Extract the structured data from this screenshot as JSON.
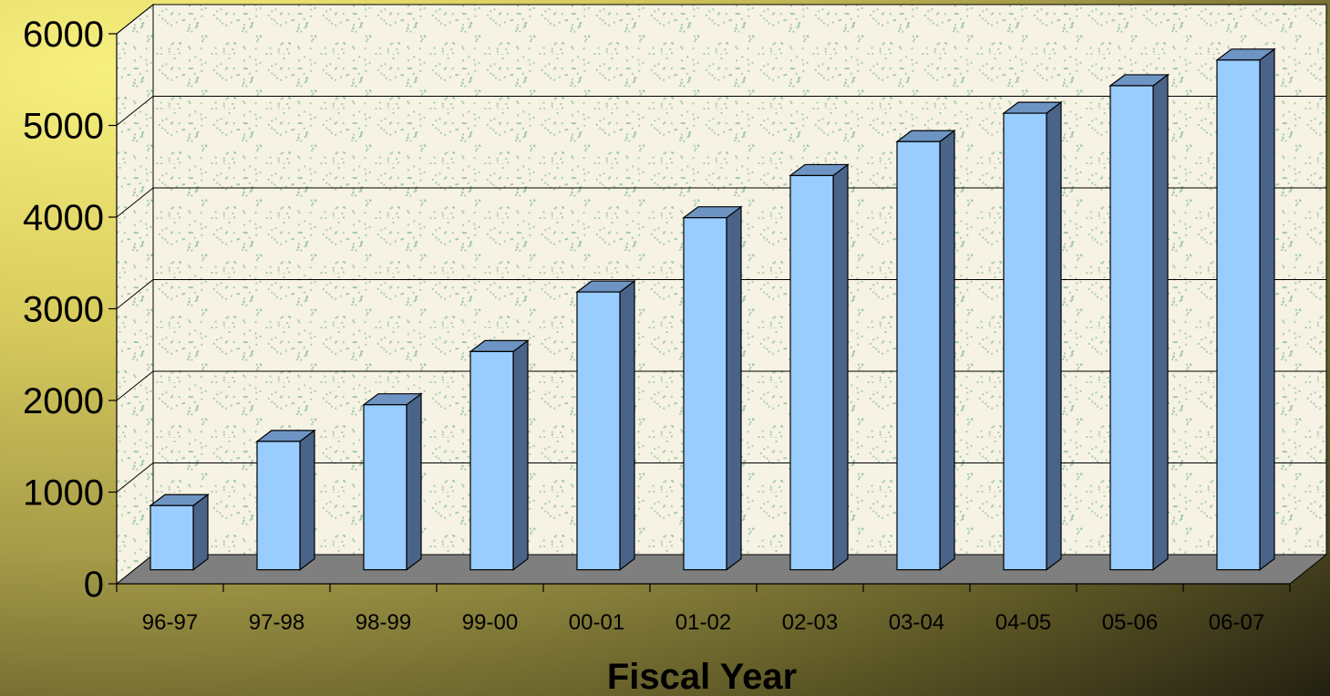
{
  "chart_data": {
    "type": "bar",
    "style": "3d-column",
    "title": "",
    "xlabel": "Fiscal Year",
    "ylabel": "",
    "categories": [
      "96-97",
      "97-98",
      "98-99",
      "99-00",
      "00-01",
      "01-02",
      "02-03",
      "03-04",
      "04-05",
      "05-06",
      "06-07"
    ],
    "values": [
      700,
      1400,
      1800,
      2380,
      3030,
      3840,
      4300,
      4670,
      4980,
      5280,
      5560
    ],
    "ylim": [
      0,
      6000
    ],
    "yticks": [
      "0",
      "1000",
      "2000",
      "3000",
      "4000",
      "5000",
      "6000"
    ],
    "grid": true,
    "legend": "none",
    "colors": {
      "bar_front": "#99ccff",
      "bar_top": "#6e94c4",
      "bar_side": "#4a6388",
      "wall": "#f6f3e4",
      "floor": "#7f7f7f",
      "speckle": "#8fbf9a"
    }
  }
}
